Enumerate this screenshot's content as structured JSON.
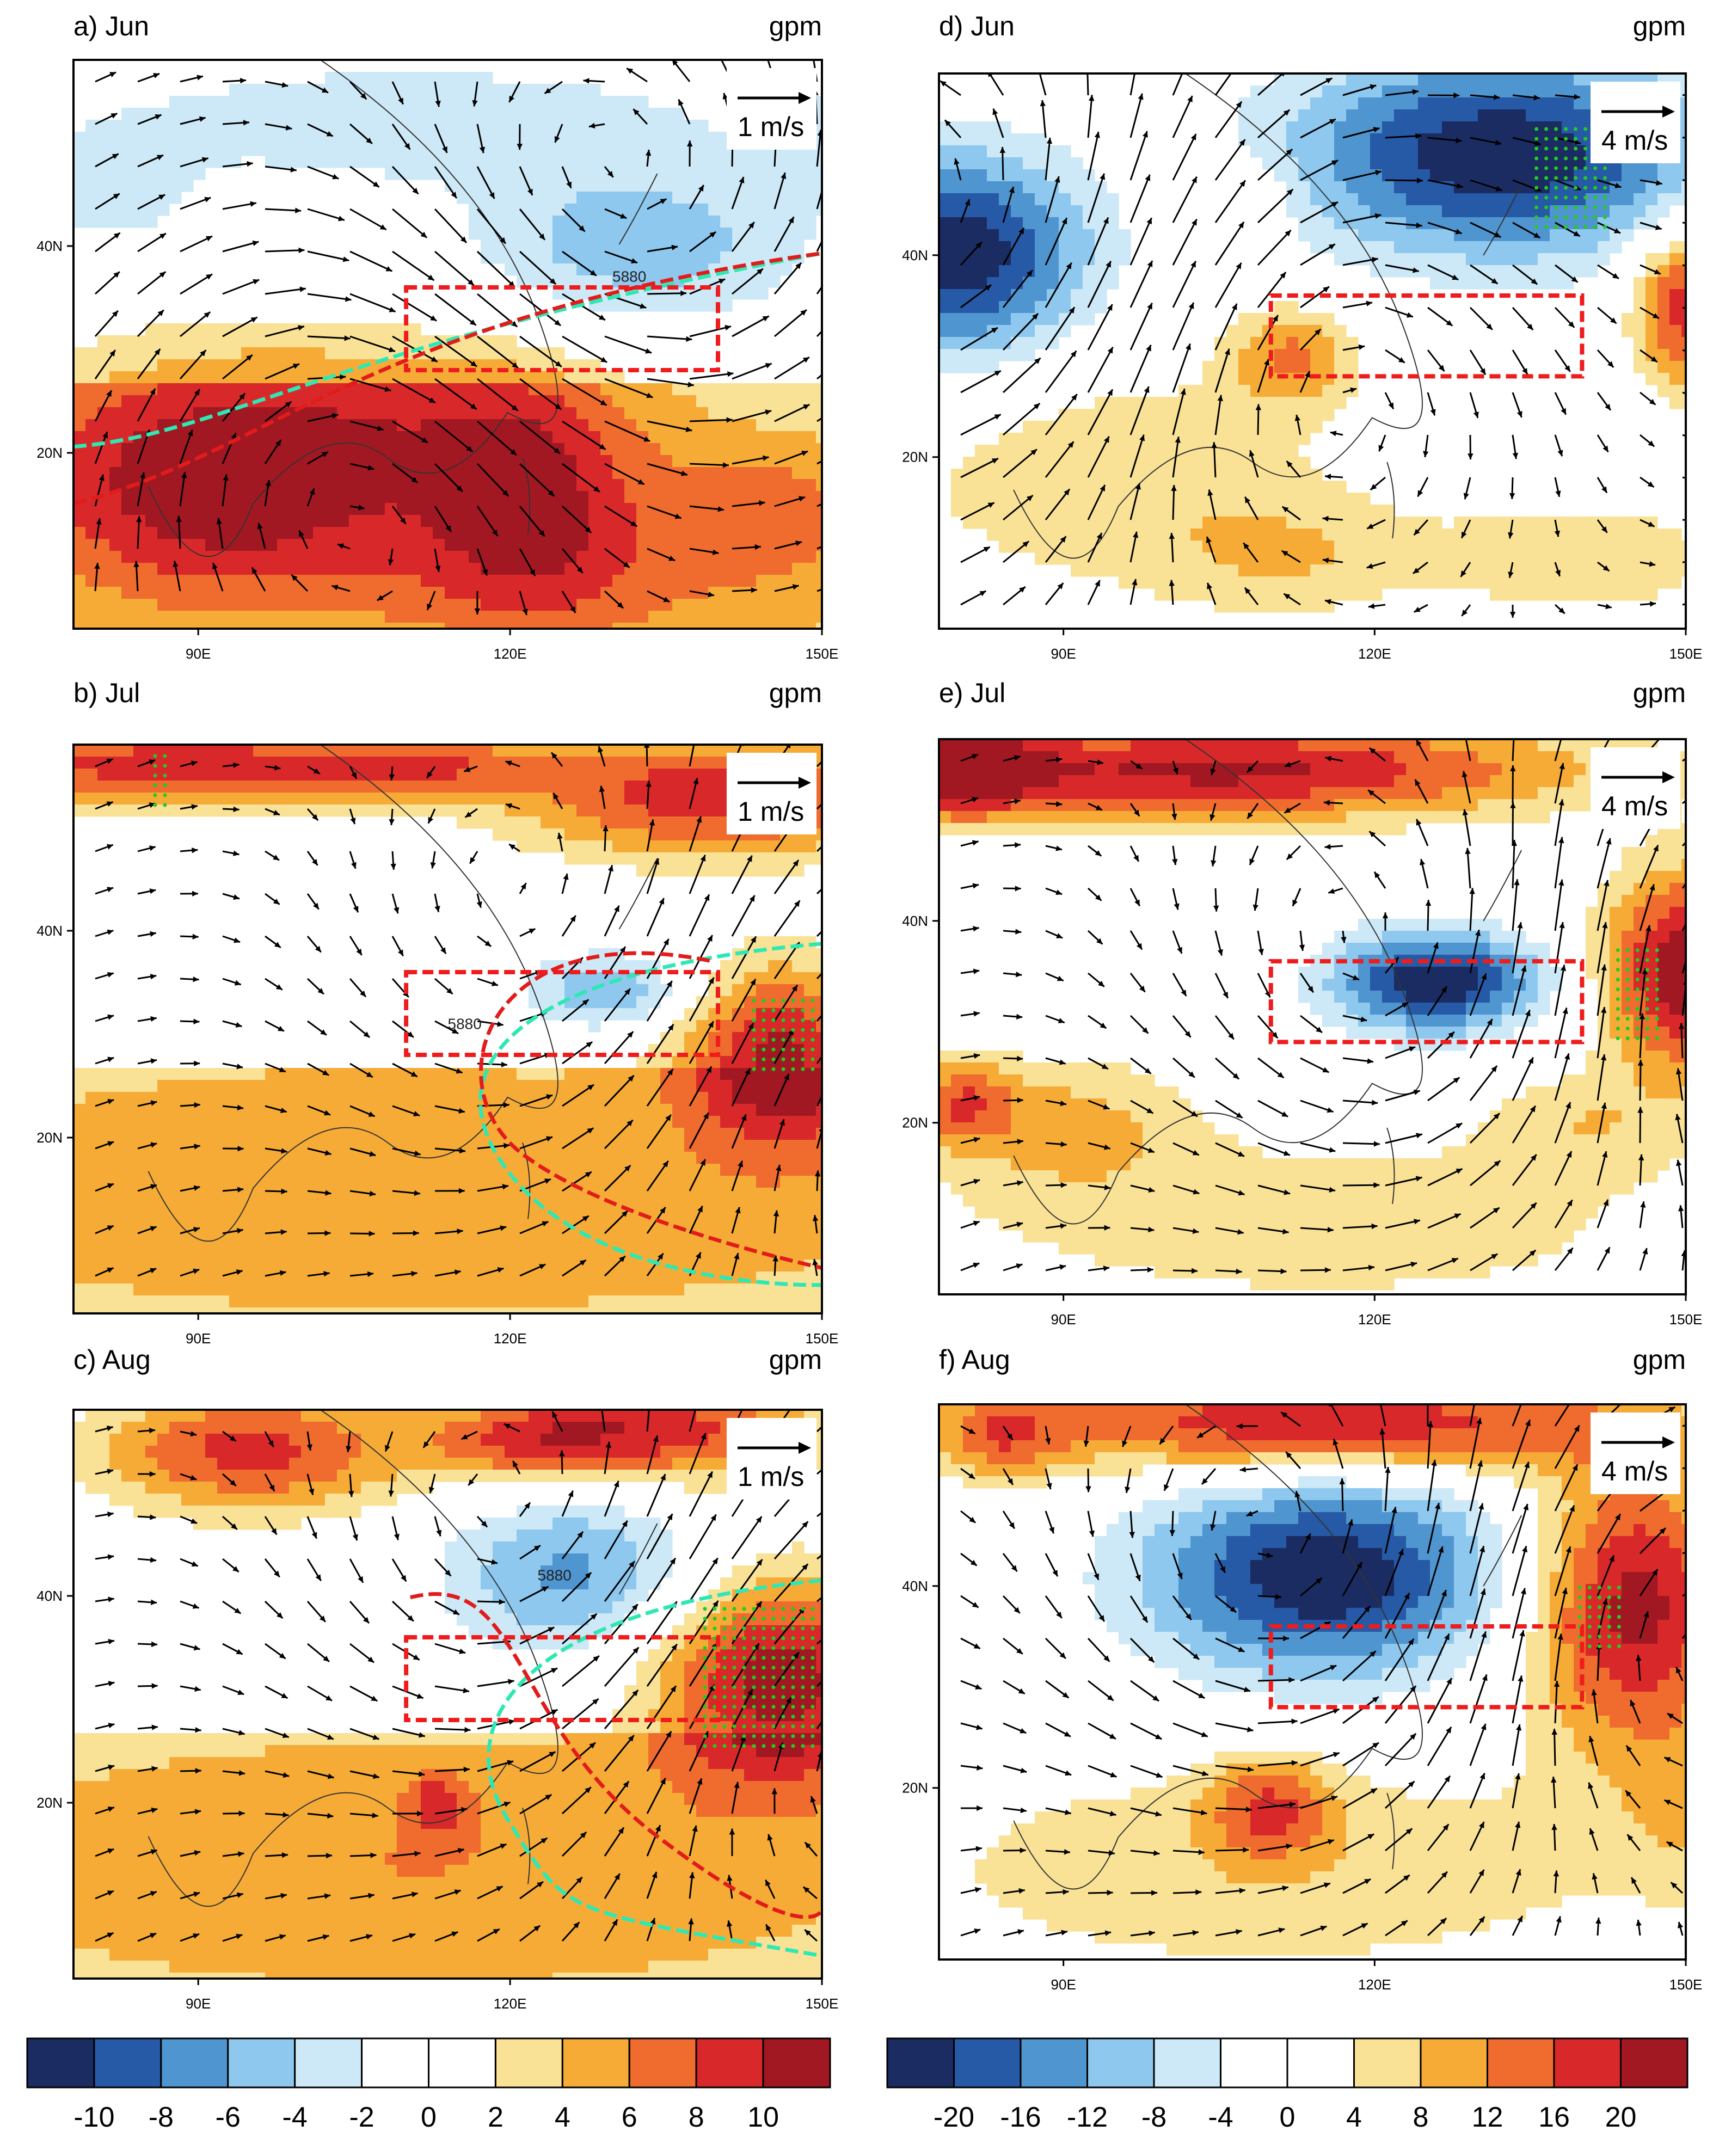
{
  "panels": [
    {
      "id": "a",
      "title": "a) Jun",
      "units": "gpm",
      "vector_label": "1 m/s",
      "contour_label": "5880"
    },
    {
      "id": "b",
      "title": "b) Jul",
      "units": "gpm",
      "vector_label": "1 m/s",
      "contour_label": "5880"
    },
    {
      "id": "c",
      "title": "c) Aug",
      "units": "gpm",
      "vector_label": "1 m/s",
      "contour_label": "5880"
    },
    {
      "id": "d",
      "title": "d) Jun",
      "units": "gpm",
      "vector_label": "4 m/s"
    },
    {
      "id": "e",
      "title": "e) Jul",
      "units": "gpm",
      "vector_label": "4 m/s"
    },
    {
      "id": "f",
      "title": "f) Aug",
      "units": "gpm",
      "vector_label": "4 m/s"
    }
  ],
  "axes": {
    "x_ticks": [
      "90E",
      "120E",
      "150E"
    ],
    "y_ticks": [
      "20N",
      "40N"
    ],
    "lon_range": [
      78,
      150
    ],
    "lat_range": [
      3,
      58
    ]
  },
  "colorbars": [
    {
      "id": "left",
      "labels": [
        "-10",
        "-8",
        "-6",
        "-4",
        "-2",
        "0",
        "2",
        "4",
        "6",
        "8",
        "10"
      ],
      "colors": [
        "#1b2c63",
        "#2659a6",
        "#4f95cf",
        "#8ec8ee",
        "#cde8f6",
        "#ffffff",
        "#ffffff",
        "#f9e196",
        "#f6ab37",
        "#ef6b2e",
        "#d9282a",
        "#a11822"
      ]
    },
    {
      "id": "right",
      "labels": [
        "-20",
        "-16",
        "-12",
        "-8",
        "-4",
        "0",
        "4",
        "8",
        "12",
        "16",
        "20"
      ],
      "colors": [
        "#1b2c63",
        "#2659a6",
        "#4f95cf",
        "#8ec8ee",
        "#cde8f6",
        "#ffffff",
        "#ffffff",
        "#f9e196",
        "#f6ab37",
        "#ef6b2e",
        "#d9282a",
        "#a11822"
      ]
    }
  ],
  "colors": {
    "box_outline": "#ee1c1c",
    "contour_5880": "#e21b1b",
    "contour_cyan": "#2ee8b4",
    "stipple": "#22cc22"
  }
}
